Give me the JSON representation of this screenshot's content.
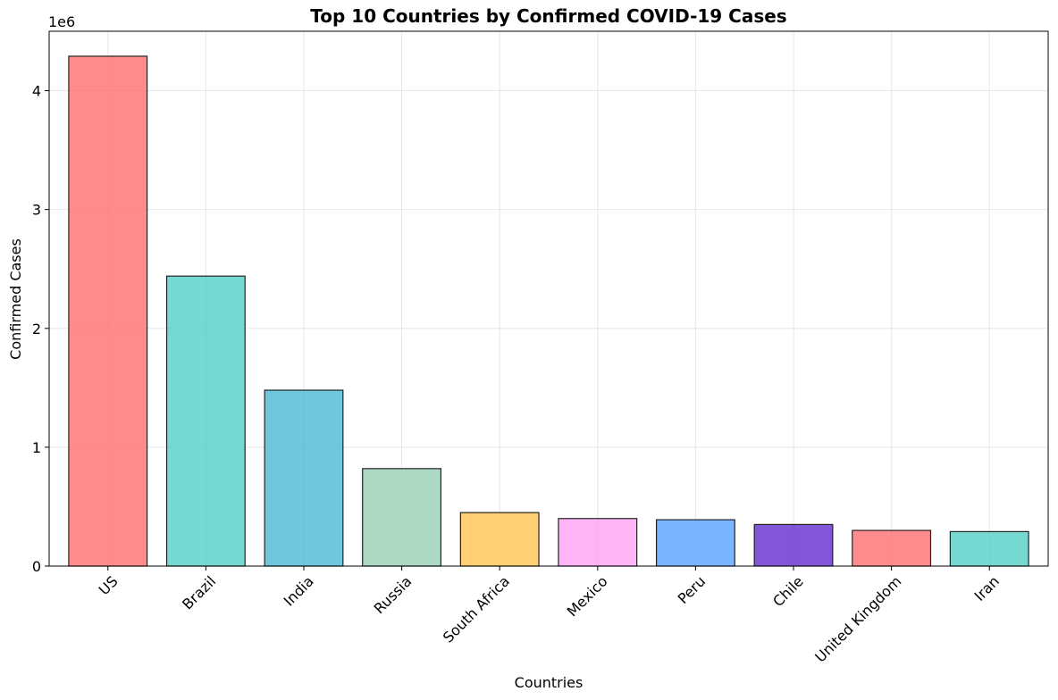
{
  "chart_data": {
    "type": "bar",
    "title": "Top 10 Countries by Confirmed COVID-19 Cases",
    "xlabel": "Countries",
    "ylabel": "Confirmed Cases",
    "y_offset_label": "1e6",
    "categories": [
      "US",
      "Brazil",
      "India",
      "Russia",
      "South Africa",
      "Mexico",
      "Peru",
      "Chile",
      "United Kingdom",
      "Iran"
    ],
    "values": [
      4290000,
      2440000,
      1480000,
      820000,
      450000,
      400000,
      390000,
      350000,
      300000,
      290000
    ],
    "colors": [
      "#FF6B6B",
      "#4ECDC4",
      "#45B7D1",
      "#96CEB4",
      "#FFC44D",
      "#FF9FF3",
      "#54A0FF",
      "#5F27CD",
      "#FF6B6B",
      "#4ECDC4"
    ],
    "ylim": [
      0,
      4500000
    ],
    "yticks": [
      0,
      1000000,
      2000000,
      3000000,
      4000000
    ],
    "ytick_labels": [
      "0",
      "1",
      "2",
      "3",
      "4"
    ],
    "grid": true,
    "x_tick_rotation": 45
  }
}
